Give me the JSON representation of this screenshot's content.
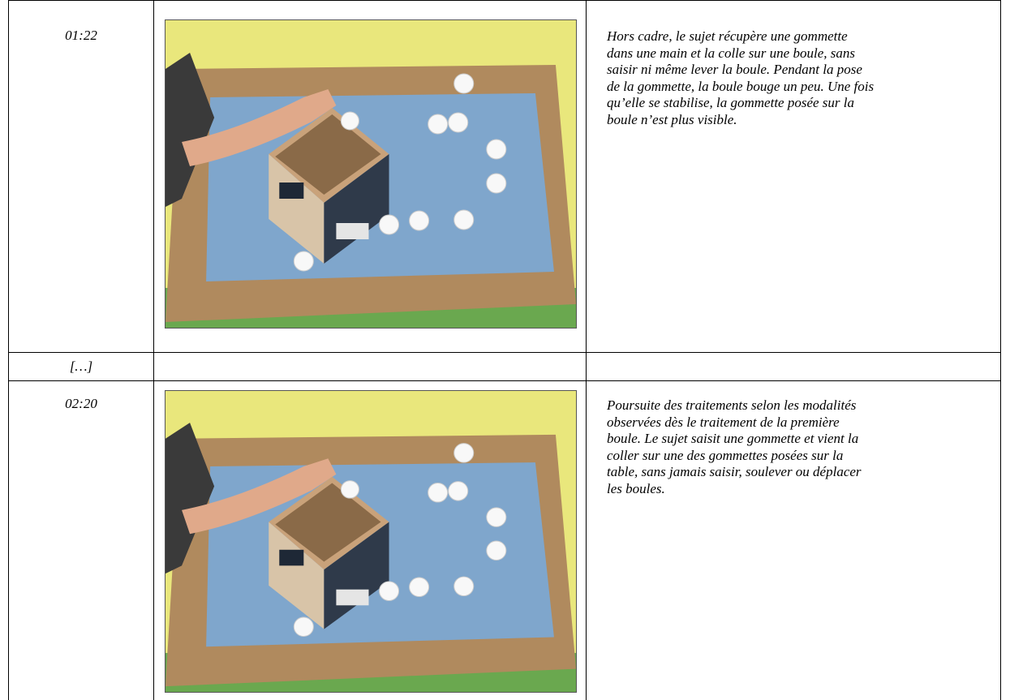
{
  "table": {
    "rows": [
      {
        "time": "01:22",
        "text": [
          "Hors cadre, le sujet récupère une gommette",
          "dans une main et la colle sur une boule, sans",
          "saisir ni même lever la boule. Pendant la pose",
          "de la gommette, la boule bouge un peu. Une fois",
          "qu’elle se stabilise, la gommette posée sur la",
          "boule n’est plus visible."
        ]
      },
      {
        "time": "[…]"
      },
      {
        "time": "02:20",
        "text": [
          "Poursuite des traitements selon les modalités",
          "observées dès le traitement de la première",
          "boule. Le sujet saisit une gommette et vient la",
          "coller sur une des gommettes posées sur la",
          "table, sans jamais saisir, soulever ou déplacer",
          "les boules."
        ]
      }
    ]
  }
}
